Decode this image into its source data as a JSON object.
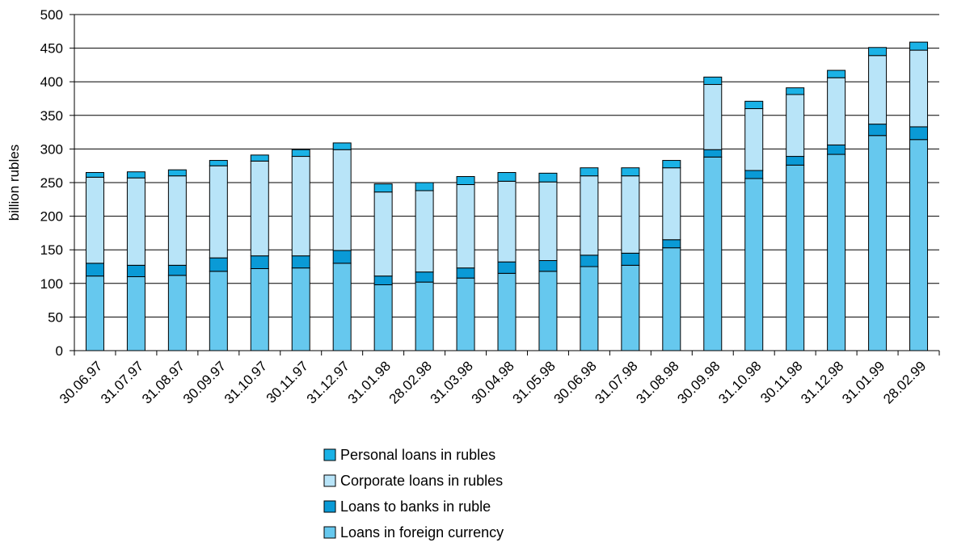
{
  "chart_data": {
    "type": "bar",
    "stacked": true,
    "ylabel": "billion rubles",
    "ylim": [
      0,
      500
    ],
    "yticks": [
      0,
      50,
      100,
      150,
      200,
      250,
      300,
      350,
      400,
      450,
      500
    ],
    "grid": true,
    "legend_position": "bottom",
    "categories": [
      "30.06.97",
      "31.07.97",
      "31.08.97",
      "30.09.97",
      "31.10.97",
      "30.11.97",
      "31.12.97",
      "31.01.98",
      "28.02.98",
      "31.03.98",
      "30.04.98",
      "31.05.98",
      "30.06.98",
      "31.07.98",
      "31.08.98",
      "30.09.98",
      "31.10.98",
      "30.11.98",
      "31.12.98",
      "31.01.99",
      "28.02.99"
    ],
    "series": [
      {
        "name": "Loans in foreign currency",
        "color": "#66c8ee",
        "values": [
          111,
          110,
          112,
          118,
          122,
          123,
          130,
          98,
          102,
          108,
          115,
          118,
          125,
          127,
          153,
          288,
          256,
          276,
          292,
          320,
          314
        ]
      },
      {
        "name": "Loans to banks in ruble",
        "color": "#0a9ad6",
        "values": [
          19,
          17,
          15,
          20,
          19,
          18,
          19,
          13,
          15,
          15,
          17,
          16,
          17,
          18,
          12,
          11,
          12,
          13,
          14,
          17,
          19
        ]
      },
      {
        "name": "Corporate loans in rubles",
        "color": "#b8e4f8",
        "values": [
          128,
          130,
          133,
          137,
          141,
          148,
          150,
          125,
          121,
          124,
          120,
          117,
          118,
          115,
          107,
          97,
          92,
          92,
          100,
          102,
          114
        ]
      },
      {
        "name": "Personal loans in rubles",
        "color": "#1ab2e6",
        "values": [
          7,
          9,
          9,
          8,
          9,
          10,
          10,
          12,
          12,
          12,
          13,
          13,
          12,
          12,
          11,
          11,
          11,
          10,
          11,
          12,
          12
        ]
      }
    ],
    "legend_order": [
      "Personal loans in rubles",
      "Corporate loans in rubles",
      "Loans to banks in ruble",
      "Loans in foreign currency"
    ]
  }
}
